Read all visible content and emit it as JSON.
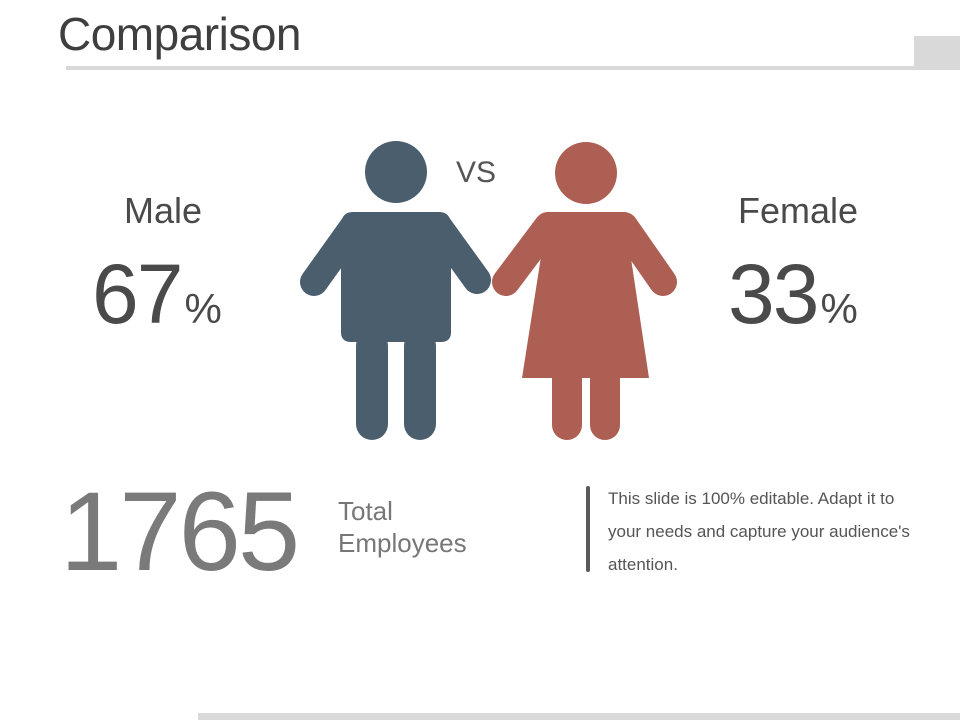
{
  "slide": {
    "title": "Comparison",
    "vs_label": "VS",
    "male": {
      "label": "Male",
      "percent": "67",
      "percent_sign": "%"
    },
    "female": {
      "label": "Female",
      "percent": "33",
      "percent_sign": "%"
    },
    "total": {
      "value": "1765",
      "label": "Total Employees"
    },
    "description": "This slide is 100% editable. Adapt it to your needs and capture your audience's attention."
  },
  "colors": {
    "male": "#4a5e6e",
    "female": "#ad5f53",
    "rule": "#d9d9d9"
  },
  "icons": [
    "male-figure-icon",
    "female-figure-icon"
  ]
}
